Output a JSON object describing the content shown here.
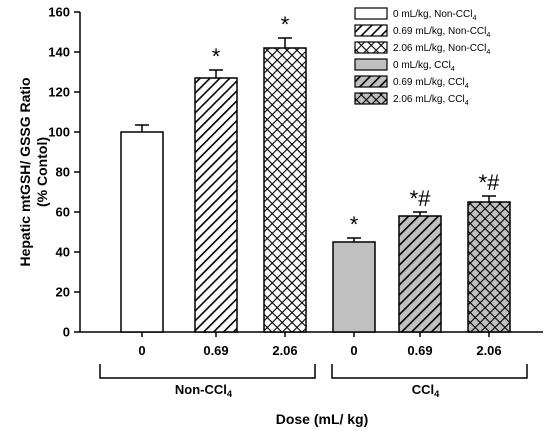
{
  "chart_data": {
    "type": "bar",
    "ylabel_line1": "Hepatic mtGSH/ GSSG Ratio",
    "ylabel_line2": "(% Contol)",
    "xlabel": "Dose (mL/ kg)",
    "ylim": [
      0,
      160
    ],
    "yticks": [
      "0",
      "20",
      "40",
      "60",
      "80",
      "100",
      "120",
      "140",
      "160"
    ],
    "legend_position": "top-right",
    "groups": [
      {
        "prefix": "Non-CCl",
        "sub": "4"
      },
      {
        "prefix": "CCl",
        "sub": "4"
      }
    ],
    "bars": [
      {
        "category": "0",
        "group": 0,
        "value": 100,
        "error": 3.5,
        "fill": "#ffffff",
        "pattern": "none",
        "annotation": ""
      },
      {
        "category": "0.69",
        "group": 0,
        "value": 127,
        "error": 4,
        "fill": "#ffffff",
        "pattern": "diag",
        "annotation": "*"
      },
      {
        "category": "2.06",
        "group": 0,
        "value": 142,
        "error": 5,
        "fill": "#ffffff",
        "pattern": "cross",
        "annotation": "*"
      },
      {
        "category": "0",
        "group": 1,
        "value": 45,
        "error": 2,
        "fill": "#c0c0c0",
        "pattern": "none",
        "annotation": "*"
      },
      {
        "category": "0.69",
        "group": 1,
        "value": 58,
        "error": 2,
        "fill": "#c0c0c0",
        "pattern": "diag",
        "annotation": "*#"
      },
      {
        "category": "2.06",
        "group": 1,
        "value": 65,
        "error": 3,
        "fill": "#c0c0c0",
        "pattern": "cross",
        "annotation": "*#"
      }
    ],
    "legend": [
      {
        "prefix": "0 mL/kg, Non-CCl",
        "sub": "4",
        "fill": "#ffffff",
        "pattern": "none"
      },
      {
        "prefix": "0.69 mL/kg, Non-CCl",
        "sub": "4",
        "fill": "#ffffff",
        "pattern": "diag"
      },
      {
        "prefix": "2.06 mL/kg, Non-CCl",
        "sub": "4",
        "fill": "#ffffff",
        "pattern": "cross"
      },
      {
        "prefix": "0 mL/kg, CCl",
        "sub": "4",
        "fill": "#c0c0c0",
        "pattern": "none"
      },
      {
        "prefix": "0.69 mL/kg, CCl",
        "sub": "4",
        "fill": "#c0c0c0",
        "pattern": "diag"
      },
      {
        "prefix": "2.06 mL/kg, CCl",
        "sub": "4",
        "fill": "#c0c0c0",
        "pattern": "cross"
      }
    ]
  }
}
